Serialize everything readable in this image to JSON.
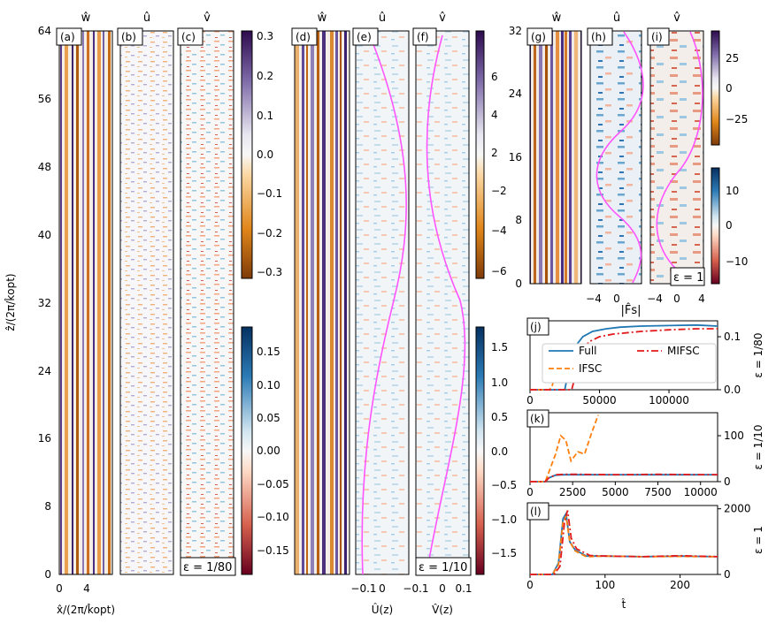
{
  "figure": {
    "titles": {
      "w": "ŵ",
      "u": "û",
      "v": "v̂"
    },
    "y_label_left": "ẑ/(2π/k̂opt)",
    "x_label_left": "x̂/(2π/k̂opt)",
    "x_ticks_left": [
      "0",
      "4"
    ],
    "y_ticks_left": [
      "0",
      "8",
      "16",
      "24",
      "32",
      "40",
      "48",
      "56",
      "64"
    ],
    "y_ticks_right": [
      "0",
      "8",
      "16",
      "24",
      "32"
    ],
    "panel_labels": [
      "(a)",
      "(b)",
      "(c)",
      "(d)",
      "(e)",
      "(f)",
      "(g)",
      "(h)",
      "(i)",
      "(j)",
      "(k)",
      "(l)"
    ],
    "eps_box_1": "ε = 1/80",
    "eps_box_2": "ε = 1/10",
    "eps_box_3": "ε = 1",
    "colorbar_1_ticks": [
      "0.3",
      "0.2",
      "0.1",
      "0.0",
      "−0.1",
      "−0.2",
      "−0.3"
    ],
    "colorbar_2_ticks": [
      "0.15",
      "0.10",
      "0.05",
      "0.00",
      "−0.05",
      "−0.10",
      "−0.15"
    ],
    "colorbar_3_ticks": [
      "6",
      "4",
      "2",
      "0",
      "−2",
      "−4",
      "−6"
    ],
    "colorbar_4_ticks": [
      "1.5",
      "1.0",
      "0.5",
      "0.0",
      "−0.5",
      "−1.0",
      "−1.5"
    ],
    "colorbar_5_ticks": [
      "25",
      "0",
      "−25"
    ],
    "colorbar_6_ticks": [
      "10",
      "0",
      "−10"
    ],
    "profile_ticks_mid": [
      "−0.1",
      "0",
      "−0.1",
      "0",
      "0.1"
    ],
    "profile_labels_mid": [
      "Û(z)",
      "V̂(z)"
    ],
    "profile_ticks_right": [
      "−4",
      "0",
      "−4",
      "0",
      "4"
    ],
    "magenta": "#ff55ff"
  },
  "chart_data": [
    {
      "type": "line",
      "panel": "(j)",
      "title": "|F̂s|",
      "ylabel": "ε = 1/80",
      "xlim": [
        0,
        135000
      ],
      "ylim": [
        0,
        0.13
      ],
      "x_ticks": [
        "0",
        "50000",
        "100000"
      ],
      "y_ticks": [
        "0.0",
        "0.1"
      ],
      "legend": [
        "Full",
        "IFSC",
        "MIFSC"
      ],
      "series": [
        {
          "name": "Full",
          "color": "#1f77b4",
          "dash": "solid",
          "x": [
            0,
            25000,
            28000,
            32000,
            38000,
            45000,
            55000,
            65000,
            80000,
            100000,
            120000,
            135000
          ],
          "y": [
            0,
            0,
            0.04,
            0.08,
            0.1,
            0.11,
            0.115,
            0.118,
            0.12,
            0.121,
            0.122,
            0.12
          ]
        },
        {
          "name": "IFSC",
          "color": "#ff7f0e",
          "dash": "dashed",
          "x": [
            0,
            14000,
            16000,
            19000,
            23000
          ],
          "y": [
            0,
            0,
            0.008,
            0.035,
            0.055
          ]
        },
        {
          "name": "MIFSC",
          "color": "#e31a1c",
          "dash": "dashdot",
          "x": [
            0,
            30000,
            35000,
            42000,
            50000,
            60000,
            80000,
            100000,
            120000,
            135000
          ],
          "y": [
            0,
            0,
            0.05,
            0.09,
            0.1,
            0.105,
            0.11,
            0.113,
            0.115,
            0.115
          ]
        }
      ]
    },
    {
      "type": "line",
      "panel": "(k)",
      "ylabel": "ε = 1/10",
      "xlim": [
        0,
        11000
      ],
      "ylim": [
        0,
        150
      ],
      "x_ticks": [
        "0",
        "2500",
        "5000",
        "7500",
        "10000"
      ],
      "y_ticks": [
        "0",
        "100"
      ],
      "series": [
        {
          "name": "Full",
          "color": "#1f77b4",
          "dash": "solid",
          "x": [
            0,
            900,
            1100,
            1500,
            2000,
            3000,
            5000,
            7500,
            11000
          ],
          "y": [
            0,
            0,
            8,
            14,
            15,
            15,
            15,
            15,
            15
          ]
        },
        {
          "name": "IFSC",
          "color": "#ff7f0e",
          "dash": "dashed",
          "x": [
            0,
            900,
            1200,
            1500,
            1800,
            2100,
            2400,
            2800,
            3200,
            3600,
            4000
          ],
          "y": [
            0,
            0,
            30,
            60,
            100,
            90,
            45,
            65,
            60,
            105,
            145
          ]
        },
        {
          "name": "MIFSC",
          "color": "#e31a1c",
          "dash": "dashdot",
          "x": [
            0,
            900,
            1100,
            1500,
            2000,
            3000,
            5000,
            7500,
            11000
          ],
          "y": [
            0,
            0,
            8,
            15,
            16,
            16,
            15,
            16,
            15
          ]
        }
      ]
    },
    {
      "type": "line",
      "panel": "(l)",
      "ylabel": "ε = 1",
      "xlabel": "t̂",
      "xlim": [
        0,
        250
      ],
      "ylim": [
        0,
        2100
      ],
      "x_ticks": [
        "0",
        "100",
        "200"
      ],
      "y_ticks": [
        "0",
        "2000"
      ],
      "series": [
        {
          "name": "Full",
          "color": "#1f77b4",
          "dash": "solid",
          "x": [
            0,
            30,
            38,
            44,
            48,
            53,
            60,
            75,
            100,
            150,
            200,
            250
          ],
          "y": [
            0,
            0,
            350,
            1700,
            1850,
            1000,
            750,
            560,
            560,
            540,
            560,
            540
          ]
        },
        {
          "name": "IFSC",
          "color": "#ff7f0e",
          "dash": "dashed",
          "x": [
            0,
            30,
            38,
            44,
            48,
            53,
            60,
            75,
            100,
            150,
            200,
            250
          ],
          "y": [
            0,
            0,
            300,
            1600,
            1780,
            1000,
            720,
            540,
            560,
            540,
            550,
            540
          ]
        },
        {
          "name": "MIFSC",
          "color": "#e31a1c",
          "dash": "dashdot",
          "x": [
            0,
            32,
            40,
            46,
            50,
            55,
            62,
            80,
            100,
            150,
            200,
            250
          ],
          "y": [
            0,
            0,
            250,
            1600,
            1950,
            1100,
            780,
            580,
            560,
            540,
            570,
            540
          ]
        }
      ]
    }
  ]
}
